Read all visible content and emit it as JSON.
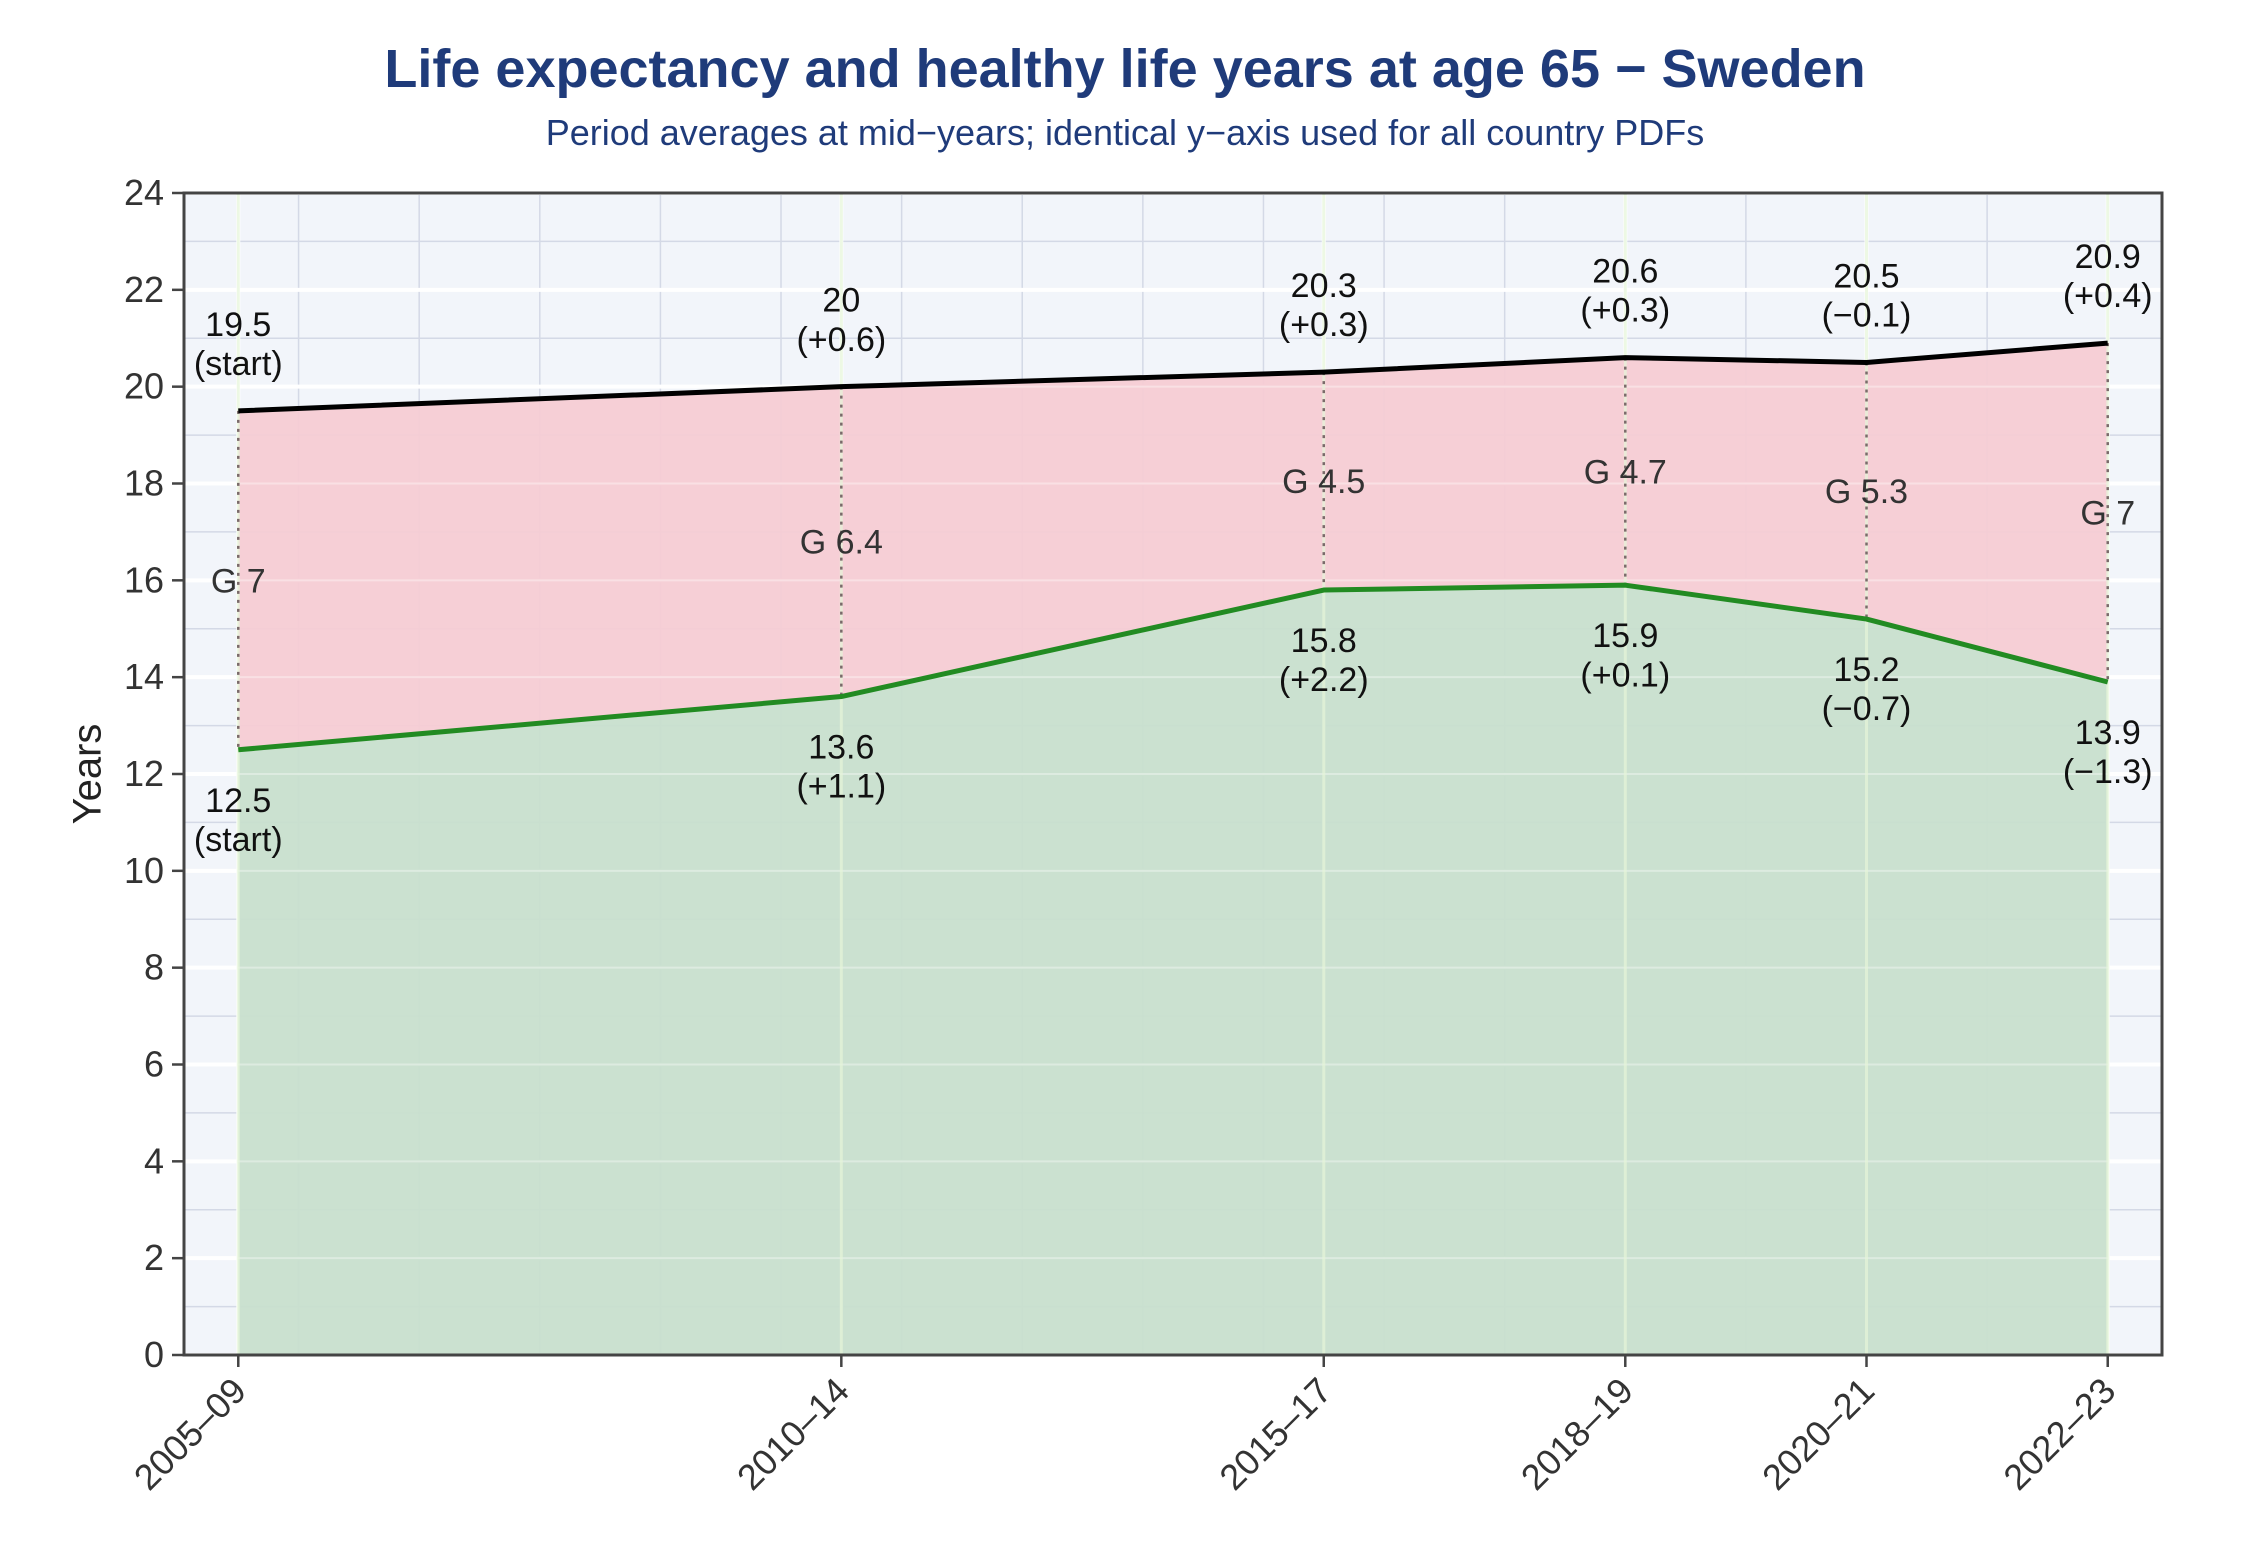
{
  "chart_data": {
    "type": "area",
    "title": "Life expectancy and healthy life years at age 65 − Sweden",
    "subtitle": "Period averages at mid−years; identical y−axis used for all country PDFs",
    "xlabel": "",
    "ylabel": "Years",
    "categories": [
      "2005–09",
      "2010–14",
      "2015–17",
      "2018–19",
      "2020–21",
      "2022–23"
    ],
    "x_midyears": [
      2007,
      2012,
      2016,
      2018.5,
      2020.5,
      2022.5
    ],
    "xlim": [
      2006.55,
      2022.95
    ],
    "ylim": [
      0,
      24
    ],
    "yticks": [
      0,
      2,
      4,
      6,
      8,
      10,
      12,
      14,
      16,
      18,
      20,
      22,
      24
    ],
    "grid": true,
    "series": [
      {
        "values": [
          19.5,
          20.0,
          20.3,
          20.6,
          20.5,
          20.9
        ],
        "labels": [
          "19.5\n(start)",
          "20\n(+0.6)",
          "20.3\n(+0.3)",
          "20.6\n(+0.3)",
          "20.5\n(−0.1)",
          "20.9\n(+0.4)"
        ],
        "color": "#000000"
      },
      {
        "values": [
          12.5,
          13.6,
          15.8,
          15.9,
          15.2,
          13.9
        ],
        "labels": [
          "12.5\n(start)",
          "13.6\n(+1.1)",
          "15.8\n(+2.2)",
          "15.9\n(+0.1)",
          "15.2\n(−0.7)",
          "13.9\n(−1.3)"
        ],
        "color": "#228b22"
      }
    ],
    "gap_labels": [
      "G 7",
      "G 6.4",
      "G 4.5",
      "G 4.7",
      "G 5.3",
      "G 7"
    ],
    "colors": {
      "gap_fill": "#f5ccd4",
      "healthy_fill": "#c8dfcd",
      "plot_background": "#f2f5fa",
      "major_grid": "#ffffff",
      "minor_grid": "#d4d9e6",
      "title": "#1f3b7a"
    }
  }
}
